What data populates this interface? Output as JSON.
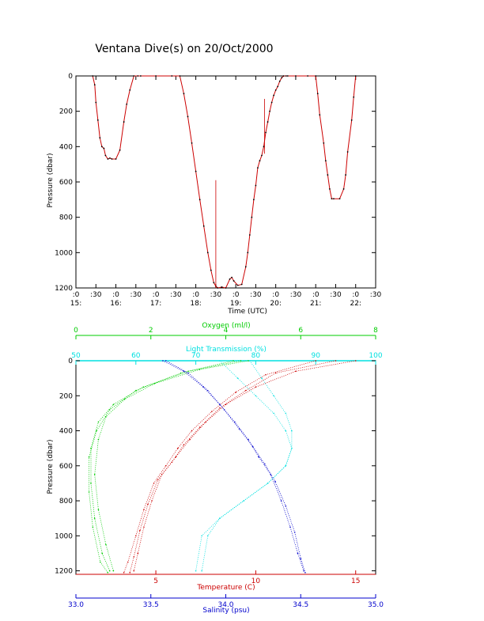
{
  "chart_data": [
    {
      "type": "line",
      "title": "Ventana Dive(s) on 20/Oct/2000",
      "xlabel": "Time (UTC)",
      "ylabel": "Pressure (dbar)",
      "xlim": [
        15.0,
        22.5
      ],
      "ylim": [
        1200,
        0
      ],
      "y_inverted": true,
      "y_ticks": [
        0,
        200,
        400,
        600,
        800,
        1000,
        1200
      ],
      "x_ticks": [
        {
          "t": 15.0,
          "top": ":0",
          "bottom": "15:"
        },
        {
          "t": 15.5,
          "top": ":30",
          "bottom": ""
        },
        {
          "t": 16.0,
          "top": ":0",
          "bottom": "16:"
        },
        {
          "t": 16.5,
          "top": ":30",
          "bottom": ""
        },
        {
          "t": 17.0,
          "top": ":0",
          "bottom": "17:"
        },
        {
          "t": 17.5,
          "top": ":30",
          "bottom": ""
        },
        {
          "t": 18.0,
          "top": ":0",
          "bottom": "18:"
        },
        {
          "t": 18.5,
          "top": ":30",
          "bottom": ""
        },
        {
          "t": 19.0,
          "top": ":0",
          "bottom": "19:"
        },
        {
          "t": 19.5,
          "top": ":30",
          "bottom": ""
        },
        {
          "t": 20.0,
          "top": ":0",
          "bottom": "20:"
        },
        {
          "t": 20.5,
          "top": ":30",
          "bottom": ""
        },
        {
          "t": 21.0,
          "top": ":0",
          "bottom": "21:"
        },
        {
          "t": 21.5,
          "top": ":30",
          "bottom": ""
        },
        {
          "t": 22.0,
          "top": ":0",
          "bottom": "22:"
        },
        {
          "t": 22.5,
          "top": ":30",
          "bottom": ""
        }
      ],
      "series": [
        {
          "color": "#cc0000",
          "x": [
            15.42,
            15.47,
            15.5,
            15.55,
            15.6,
            15.65,
            15.7,
            15.74,
            15.8,
            15.85,
            15.9,
            16.0,
            16.1,
            16.2,
            16.27,
            16.35,
            16.45,
            16.55,
            16.62,
            17.0,
            17.4,
            17.6,
            17.7,
            17.8,
            17.9,
            18.0,
            18.1,
            18.2,
            18.3,
            18.38,
            18.45,
            18.5,
            18.55,
            18.65,
            18.75,
            18.85,
            18.9,
            18.95,
            19.05,
            19.15,
            19.25,
            19.3,
            19.35,
            19.4,
            19.45,
            19.5,
            19.55,
            19.6,
            19.65,
            19.7,
            19.75,
            19.8,
            19.85,
            19.9,
            19.95,
            20.0,
            20.05,
            20.1,
            20.15,
            20.2,
            20.26,
            20.3,
            20.5,
            20.8,
            21.0,
            21.05,
            21.1,
            21.2,
            21.25,
            21.3,
            21.35,
            21.4,
            21.45,
            21.6,
            21.7,
            21.75,
            21.8,
            21.9,
            21.95,
            22.0
          ],
          "y": [
            0,
            50,
            150,
            250,
            350,
            400,
            410,
            450,
            470,
            465,
            470,
            470,
            420,
            260,
            160,
            80,
            0,
            0,
            0,
            0,
            0,
            0,
            100,
            230,
            380,
            540,
            700,
            850,
            1000,
            1100,
            1170,
            1190,
            1200,
            1195,
            1200,
            1150,
            1140,
            1160,
            1185,
            1180,
            1080,
            1000,
            900,
            800,
            700,
            620,
            520,
            480,
            450,
            400,
            320,
            260,
            200,
            150,
            110,
            80,
            60,
            30,
            10,
            0,
            0,
            0,
            0,
            0,
            0,
            100,
            220,
            380,
            480,
            560,
            640,
            695,
            695,
            695,
            640,
            560,
            430,
            250,
            120,
            0
          ]
        },
        {
          "color": "#cc0000",
          "x": [
            18.5,
            18.5
          ],
          "y": [
            1200,
            590
          ]
        },
        {
          "color": "#cc0000",
          "x": [
            19.72,
            19.72
          ],
          "y": [
            440,
            130
          ]
        }
      ]
    },
    {
      "type": "scatter",
      "ylabel": "Pressure (dbar)",
      "ylim": [
        1220,
        0
      ],
      "y_inverted": true,
      "y_ticks": [
        0,
        200,
        400,
        600,
        800,
        1000,
        1200
      ],
      "axes": [
        {
          "name": "oxygen",
          "label": "Oxygen (ml/l)",
          "position": "top-outer",
          "color": "#00cc00",
          "min": 0,
          "max": 8,
          "ticks": [
            0,
            2,
            4,
            6,
            8
          ]
        },
        {
          "name": "transmission",
          "label": "Light Transmission (%)",
          "position": "top-inner",
          "color": "#00e0e0",
          "min": 50,
          "max": 100,
          "ticks": [
            50,
            60,
            70,
            80,
            90,
            100
          ]
        },
        {
          "name": "temperature",
          "label": "Temperature (C)",
          "position": "bottom-inner",
          "color": "#cc0000",
          "min": 1,
          "max": 16,
          "ticks": [
            5,
            10,
            15
          ]
        },
        {
          "name": "salinity",
          "label": "Salinity (psu)",
          "position": "bottom-outer",
          "color": "#0000cc",
          "min": 33.0,
          "max": 35.0,
          "ticks": [
            "33.0",
            "33.5",
            "34.0",
            "34.5",
            "35.0"
          ]
        }
      ],
      "series": [
        {
          "axis": "oxygen",
          "color": "#00cc00",
          "profiles": [
            {
              "x": [
                4.4,
                3.0,
                1.8,
                1.0,
                0.6,
                0.4,
                0.4,
                0.5,
                0.7,
                0.9
              ],
              "y": [
                0,
                60,
                150,
                250,
                350,
                500,
                700,
                900,
                1100,
                1200
              ]
            },
            {
              "x": [
                4.2,
                2.8,
                1.6,
                0.9,
                0.55,
                0.35,
                0.35,
                0.45,
                0.65,
                0.85
              ],
              "y": [
                0,
                70,
                170,
                280,
                400,
                550,
                750,
                950,
                1150,
                1210
              ]
            },
            {
              "x": [
                4.6,
                3.3,
                2.1,
                1.3,
                0.8,
                0.6,
                0.5,
                0.6,
                0.8,
                1.0
              ],
              "y": [
                0,
                50,
                130,
                220,
                320,
                450,
                650,
                850,
                1050,
                1200
              ]
            }
          ]
        },
        {
          "axis": "transmission",
          "color": "#00e0e0",
          "profiles": [
            {
              "x": [
                79,
                81,
                83,
                85,
                86,
                86,
                85,
                82,
                78,
                74,
                71,
                70
              ],
              "y": [
                0,
                100,
                200,
                300,
                400,
                500,
                600,
                700,
                800,
                900,
                1000,
                1200
              ]
            },
            {
              "x": [
                74,
                77,
                80,
                83,
                85,
                86,
                85,
                82,
                78,
                74,
                72,
                71
              ],
              "y": [
                0,
                100,
                200,
                300,
                400,
                500,
                600,
                700,
                800,
                900,
                1000,
                1200
              ]
            }
          ]
        },
        {
          "axis": "temperature",
          "color": "#cc0000",
          "profiles": [
            {
              "x": [
                15.0,
                12.0,
                10.0,
                8.5,
                7.5,
                6.7,
                6.0,
                5.3,
                4.8,
                4.4,
                4.1,
                3.9
              ],
              "y": [
                0,
                60,
                150,
                250,
                350,
                450,
                550,
                650,
                800,
                950,
                1100,
                1200
              ]
            },
            {
              "x": [
                14.0,
                11.0,
                9.5,
                8.2,
                7.2,
                6.4,
                5.8,
                5.1,
                4.6,
                4.2,
                3.9,
                3.7
              ],
              "y": [
                0,
                70,
                170,
                270,
                380,
                480,
                580,
                680,
                820,
                970,
                1120,
                1210
              ]
            },
            {
              "x": [
                13.0,
                10.5,
                9.0,
                7.8,
                6.8,
                6.1,
                5.5,
                4.9,
                4.4,
                4.0,
                3.6,
                3.4
              ],
              "y": [
                0,
                80,
                180,
                290,
                400,
                500,
                600,
                700,
                850,
                1000,
                1150,
                1210
              ]
            }
          ]
        },
        {
          "axis": "salinity",
          "color": "#0000cc",
          "profiles": [
            {
              "x": [
                33.58,
                33.72,
                33.85,
                33.96,
                34.06,
                34.15,
                34.22,
                34.3,
                34.37,
                34.43,
                34.48,
                34.52
              ],
              "y": [
                0,
                60,
                150,
                250,
                350,
                450,
                550,
                650,
                800,
                950,
                1100,
                1200
              ]
            },
            {
              "x": [
                33.6,
                33.75,
                33.88,
                33.99,
                34.09,
                34.18,
                34.26,
                34.33,
                34.4,
                34.46,
                34.5,
                34.53
              ],
              "y": [
                0,
                70,
                170,
                280,
                390,
                490,
                590,
                690,
                830,
                980,
                1130,
                1210
              ]
            }
          ]
        }
      ]
    }
  ]
}
